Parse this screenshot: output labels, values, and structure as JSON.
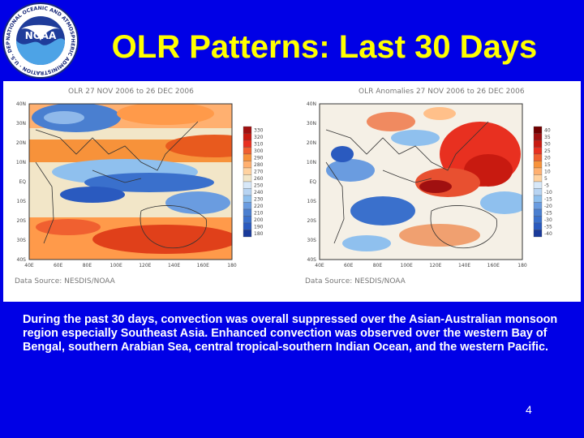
{
  "slide": {
    "title": "OLR Patterns: Last 30 Days",
    "logo": {
      "center_text": "NOAA",
      "ring_text": "NATIONAL OCEANIC AND ATMOSPHERIC ADMINISTRATION · U.S. DEPARTMENT OF COMMERCE"
    },
    "maps": [
      {
        "header": "OLR 27 NOV 2006 to 26 DEC 2006",
        "source": "Data Source: NESDIS/NOAA",
        "lat_labels": [
          "40N",
          "30N",
          "20N",
          "10N",
          "EQ",
          "10S",
          "20S",
          "30S",
          "40S"
        ],
        "lon_labels": [
          "40E",
          "60E",
          "80E",
          "100E",
          "120E",
          "140E",
          "160E",
          "180"
        ],
        "colorbar_labels": [
          "330",
          "320",
          "310",
          "300",
          "290",
          "280",
          "270",
          "260",
          "250",
          "240",
          "230",
          "220",
          "210",
          "200",
          "190",
          "180"
        ]
      },
      {
        "header": "OLR Anomalies 27 NOV 2006 to 26 DEC 2006",
        "source": "Data Source: NESDIS/NOAA",
        "lat_labels": [
          "40N",
          "30N",
          "20N",
          "10N",
          "EQ",
          "10S",
          "20S",
          "30S",
          "40S"
        ],
        "lon_labels": [
          "40E",
          "60E",
          "80E",
          "100E",
          "120E",
          "140E",
          "160E",
          "180"
        ],
        "colorbar_labels": [
          "40",
          "35",
          "30",
          "25",
          "20",
          "15",
          "10",
          "5",
          "-5",
          "-10",
          "-15",
          "-20",
          "-25",
          "-30",
          "-35",
          "-40"
        ]
      }
    ],
    "body_text": "During the past 30 days, convection was overall suppressed over the Asian-Australian monsoon region especially Southeast Asia. Enhanced convection was observed over the western Bay of Bengal, southern Arabian Sea,  central tropical-southern Indian Ocean, and the western Pacific.",
    "page_number": "4"
  }
}
